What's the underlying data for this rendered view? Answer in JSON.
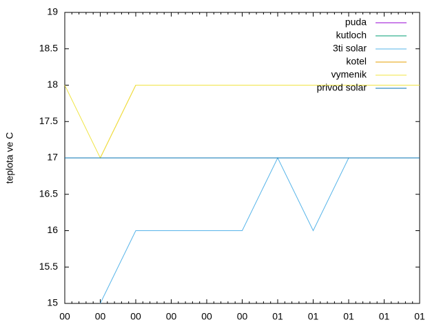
{
  "chart_data": {
    "type": "line",
    "y_label": "teplota ve C",
    "categories": [
      "00",
      "00",
      "00",
      "00",
      "00",
      "00",
      "01",
      "01",
      "01",
      "01",
      "01"
    ],
    "series": [
      {
        "name": "puda",
        "color": "#9400d3",
        "values": [
          null,
          null,
          null,
          null,
          null,
          null,
          null,
          null,
          null,
          null,
          null
        ]
      },
      {
        "name": "kutloch",
        "color": "#009e73",
        "values": [
          null,
          null,
          null,
          null,
          null,
          null,
          null,
          null,
          null,
          null,
          null
        ]
      },
      {
        "name": "3ti solar",
        "color": "#56b4e9",
        "values": [
          null,
          15,
          16,
          16,
          16,
          16,
          17,
          16,
          17,
          17,
          17
        ]
      },
      {
        "name": "kotel",
        "color": "#e69f00",
        "values": [
          null,
          17,
          18,
          18,
          18,
          18,
          18,
          18,
          18,
          18,
          18
        ]
      },
      {
        "name": "vymenik",
        "color": "#f0e442",
        "values": [
          18,
          17,
          18,
          18,
          18,
          18,
          18,
          18,
          18,
          18,
          18
        ]
      },
      {
        "name": "privod solar",
        "color": "#0072b2",
        "values": [
          17,
          17,
          17,
          17,
          17,
          17,
          17,
          17,
          17,
          17,
          17
        ]
      }
    ],
    "ylim": [
      15,
      19
    ],
    "yticks": [
      15,
      15.5,
      16,
      16.5,
      17,
      17.5,
      18,
      18.5,
      19
    ],
    "legend": "top-right"
  }
}
